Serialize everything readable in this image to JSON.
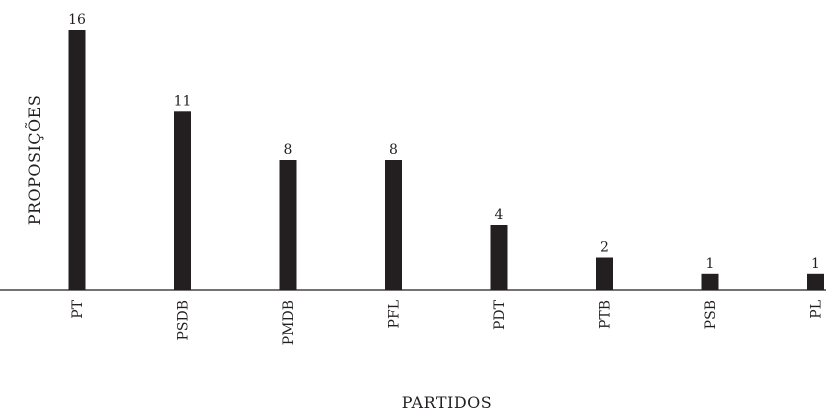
{
  "chart_data": {
    "type": "bar",
    "categories": [
      "PT",
      "PSDB",
      "PMDB",
      "PFL",
      "PDT",
      "PTB",
      "PSB",
      "PL"
    ],
    "values": [
      16,
      11,
      8,
      8,
      4,
      2,
      1,
      1
    ],
    "data_labels": [
      "16",
      "11",
      "8",
      "8",
      "4",
      "2",
      "1",
      "1"
    ],
    "title": "",
    "xlabel": "PARTIDOS",
    "ylabel": "PROPOSIÇÕES",
    "ylim": [
      0,
      17
    ],
    "grid": false,
    "legend": "none",
    "bar_color": "#231f20"
  }
}
